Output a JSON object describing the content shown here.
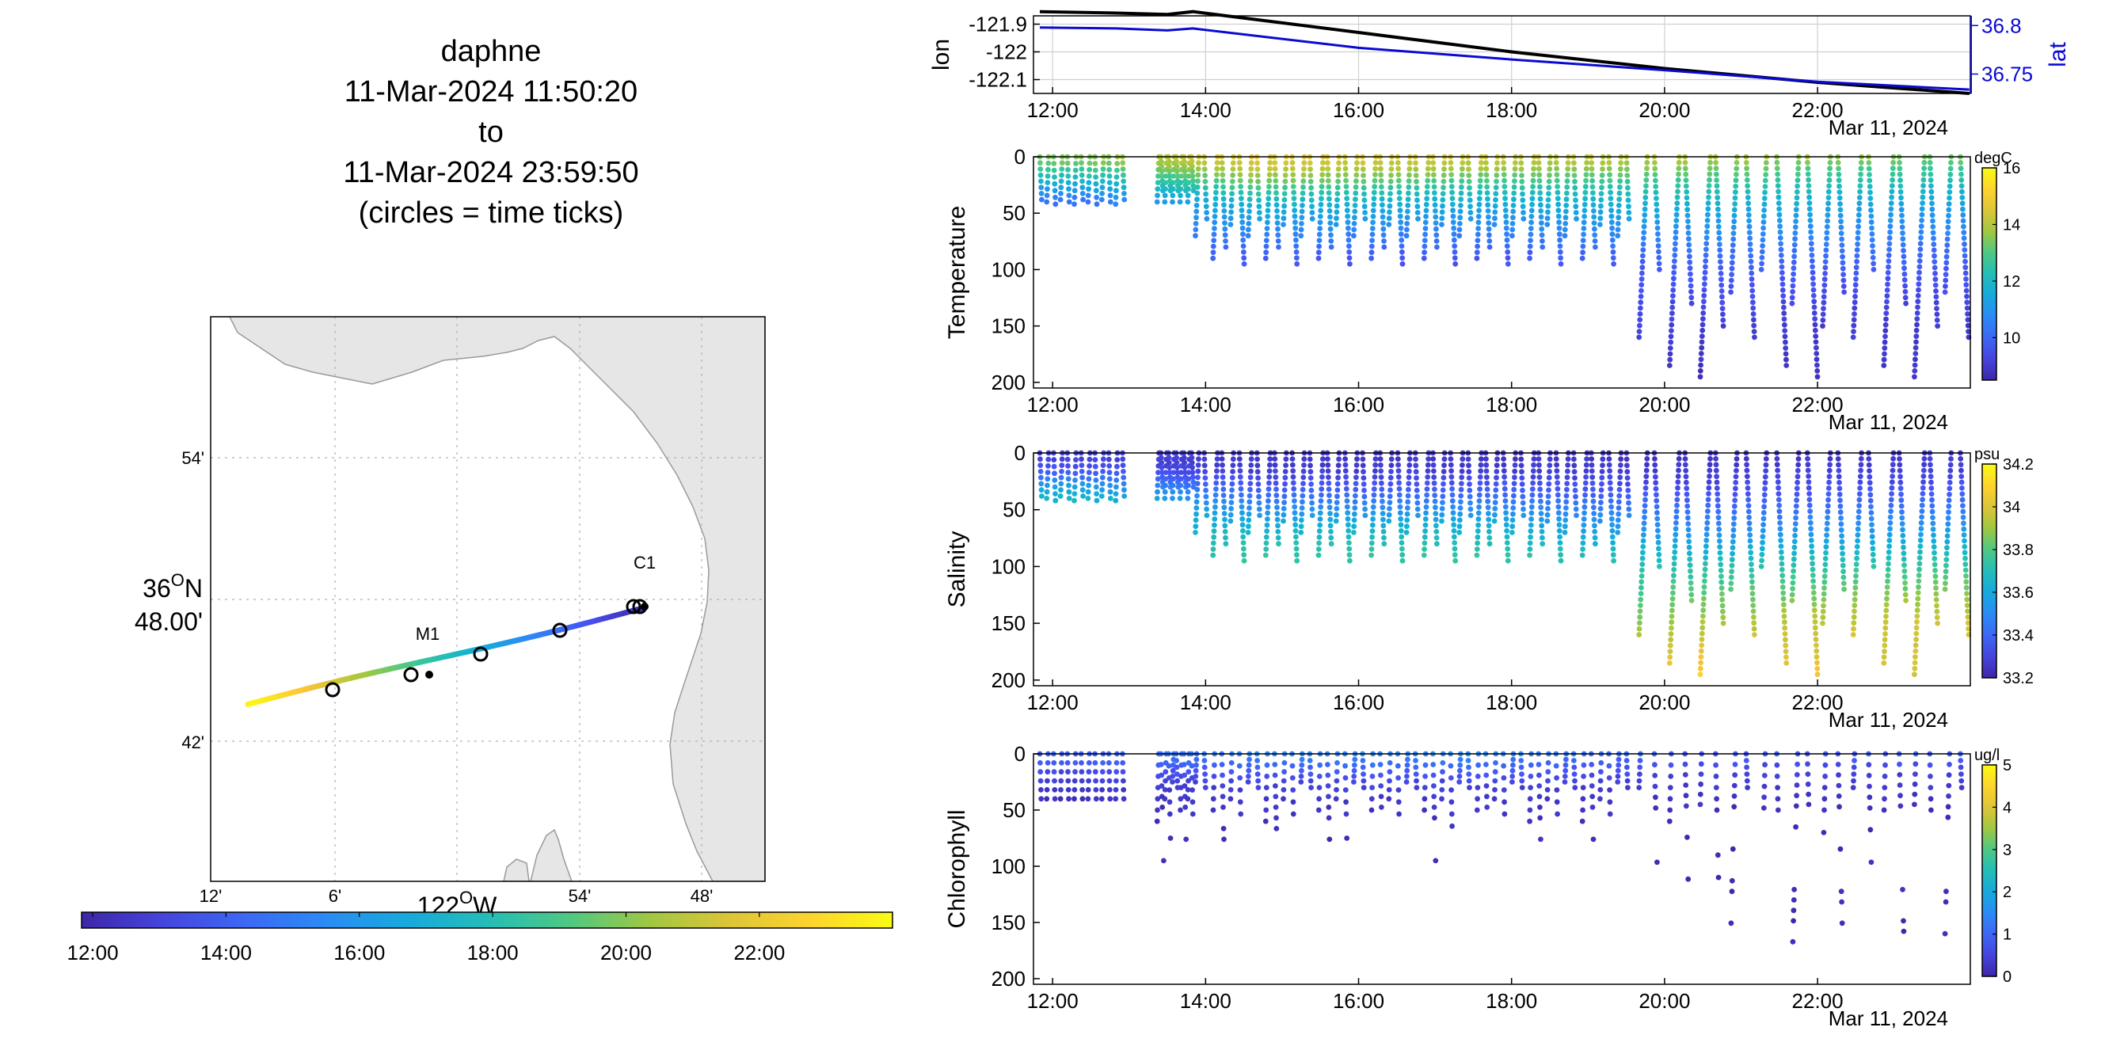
{
  "title": {
    "vehicle": "daphne",
    "start": "11-Mar-2024 11:50:20",
    "to": "to",
    "end": "11-Mar-2024 23:59:50",
    "note": "(circles = time ticks)"
  },
  "map": {
    "lat_ticks": [
      "54'",
      "36°N 48.00'",
      "42'"
    ],
    "lon_ticks": [
      "12'",
      "6'",
      "54'",
      "48'"
    ],
    "lon_label": "122°W",
    "stations": [
      {
        "name": "M1",
        "lon": -122.02,
        "lat": 36.747
      },
      {
        "name": "C1",
        "lon": -121.85,
        "lat": 36.798
      }
    ],
    "track": {
      "lon_range": [
        -122.21,
        -121.848
      ],
      "lat_range": [
        36.734,
        36.798
      ]
    },
    "colorbar_ticks": [
      "12:00",
      "14:00",
      "16:00",
      "18:00",
      "20:00",
      "22:00"
    ],
    "colors": {
      "land": "#e6e6e6",
      "coast": "#9a9a9a"
    }
  },
  "time_axis": {
    "ticks": [
      "12:00",
      "14:00",
      "16:00",
      "18:00",
      "20:00",
      "22:00"
    ],
    "date_label": "Mar 11, 2024",
    "range": [
      "11:50",
      "23:59:50"
    ]
  },
  "chart_data": [
    {
      "type": "line",
      "title": "",
      "xlabel": "",
      "ylabel": "lon",
      "y2label": "lat",
      "ylim": [
        -122.15,
        -121.87
      ],
      "y2lim": [
        36.73,
        36.81
      ],
      "yticks": [
        "-121.9",
        "-122",
        "-122.1"
      ],
      "y2ticks": [
        "36.8",
        "36.75"
      ],
      "series": [
        {
          "name": "lon",
          "axis": "left",
          "color": "#000000",
          "x": [
            "11:50",
            "12:50",
            "13:30",
            "13:50",
            "16:00",
            "18:00",
            "20:00",
            "22:00",
            "23:59"
          ],
          "y": [
            -121.855,
            -121.86,
            -121.865,
            -121.855,
            -121.93,
            -122.0,
            -122.06,
            -122.11,
            -122.15
          ]
        },
        {
          "name": "lat",
          "axis": "right",
          "color": "#0a0ad2",
          "x": [
            "11:50",
            "12:50",
            "13:30",
            "13:50",
            "16:00",
            "18:00",
            "20:00",
            "22:00",
            "23:59"
          ],
          "y": [
            36.798,
            36.797,
            36.795,
            36.797,
            36.777,
            36.765,
            36.754,
            36.742,
            36.734
          ]
        }
      ]
    },
    {
      "type": "scatter",
      "ylabel": "Temperature",
      "ylim": [
        0,
        205
      ],
      "yticks": [
        "0",
        "50",
        "100",
        "150",
        "200"
      ],
      "colorbar": {
        "unit": "degC",
        "range": [
          8.5,
          16
        ],
        "ticks": [
          "16",
          "14",
          "12",
          "10"
        ]
      },
      "profile_series": [
        {
          "x": "12:20",
          "depth": [
            0,
            5,
            10,
            15,
            20,
            25,
            30,
            35,
            40
          ],
          "value": [
            13.4,
            13.3,
            12.8,
            12.4,
            12.0,
            11.5,
            11.1,
            10.6,
            10.2
          ]
        },
        {
          "x": "14:40",
          "depth": [
            0,
            10,
            20,
            30,
            40,
            50,
            60,
            70,
            80,
            95
          ],
          "value": [
            14.6,
            14.2,
            13.5,
            12.7,
            12.0,
            11.5,
            11.0,
            10.6,
            10.1,
            9.6
          ]
        },
        {
          "x": "17:40",
          "depth": [
            0,
            10,
            20,
            30,
            40,
            50,
            60,
            70,
            80,
            90
          ],
          "value": [
            14.2,
            13.8,
            13.0,
            12.2,
            11.7,
            11.2,
            10.8,
            10.4,
            10.0,
            9.6
          ]
        },
        {
          "x": "20:20",
          "depth": [
            0,
            10,
            25,
            40,
            55,
            70,
            85,
            100,
            130,
            160,
            195
          ],
          "value": [
            14.0,
            13.4,
            12.6,
            11.9,
            11.3,
            10.7,
            10.2,
            9.8,
            9.4,
            9.0,
            8.8
          ]
        },
        {
          "x": "23:30",
          "depth": [
            0,
            10,
            25,
            40,
            55,
            70,
            85,
            100,
            125,
            150
          ],
          "value": [
            13.4,
            12.8,
            12.1,
            11.4,
            10.9,
            10.5,
            10.1,
            9.7,
            9.3,
            9.0
          ]
        }
      ]
    },
    {
      "type": "scatter",
      "ylabel": "Salinity",
      "ylim": [
        0,
        205
      ],
      "yticks": [
        "0",
        "50",
        "100",
        "150",
        "200"
      ],
      "colorbar": {
        "unit": "psu",
        "range": [
          33.2,
          34.2
        ],
        "ticks": [
          "34.2",
          "34",
          "33.8",
          "33.6",
          "33.4",
          "33.2"
        ]
      },
      "profile_series": [
        {
          "x": "12:20",
          "depth": [
            0,
            5,
            10,
            15,
            20,
            25,
            30,
            35,
            40
          ],
          "value": [
            33.28,
            33.3,
            33.32,
            33.36,
            33.42,
            33.5,
            33.58,
            33.62,
            33.66
          ]
        },
        {
          "x": "14:40",
          "depth": [
            0,
            10,
            20,
            30,
            40,
            50,
            60,
            70,
            80,
            95
          ],
          "value": [
            33.25,
            33.27,
            33.3,
            33.36,
            33.44,
            33.52,
            33.6,
            33.66,
            33.72,
            33.76
          ]
        },
        {
          "x": "17:40",
          "depth": [
            0,
            10,
            20,
            30,
            40,
            50,
            60,
            70,
            80,
            90
          ],
          "value": [
            33.25,
            33.27,
            33.3,
            33.36,
            33.44,
            33.52,
            33.6,
            33.66,
            33.7,
            33.74
          ]
        },
        {
          "x": "20:20",
          "depth": [
            0,
            10,
            25,
            40,
            55,
            70,
            85,
            100,
            130,
            160,
            195
          ],
          "value": [
            33.24,
            33.26,
            33.3,
            33.36,
            33.44,
            33.52,
            33.62,
            33.72,
            33.84,
            33.96,
            34.08
          ]
        },
        {
          "x": "23:30",
          "depth": [
            0,
            10,
            25,
            40,
            55,
            70,
            85,
            100,
            125,
            150
          ],
          "value": [
            33.26,
            33.28,
            33.32,
            33.4,
            33.48,
            33.56,
            33.66,
            33.76,
            33.88,
            33.98
          ]
        }
      ]
    },
    {
      "type": "scatter",
      "ylabel": "Chlorophyll",
      "ylim": [
        0,
        205
      ],
      "yticks": [
        "0",
        "50",
        "100",
        "150",
        "200"
      ],
      "colorbar": {
        "unit": "ug/l",
        "range": [
          0,
          5
        ],
        "ticks": [
          "5",
          "4",
          "3",
          "2",
          "1",
          "0"
        ]
      },
      "profile_series": [
        {
          "x": "12:20",
          "depth": [
            0,
            5,
            10,
            15,
            20,
            25,
            30,
            35,
            40
          ],
          "value": [
            0.9,
            0.9,
            0.8,
            0.6,
            0.5,
            0.4,
            0.3,
            0.2,
            0.2
          ]
        },
        {
          "x": "14:40",
          "depth": [
            0,
            5,
            10,
            15,
            25,
            40,
            60,
            80,
            95
          ],
          "value": [
            1.4,
            1.2,
            1.0,
            0.8,
            0.5,
            0.3,
            0.2,
            0.1,
            0.1
          ]
        },
        {
          "x": "17:40",
          "depth": [
            0,
            5,
            10,
            15,
            25,
            40,
            60,
            80,
            95
          ],
          "value": [
            1.5,
            1.3,
            1.1,
            0.9,
            0.5,
            0.3,
            0.2,
            0.1,
            0.1
          ]
        },
        {
          "x": "20:20",
          "depth": [
            0,
            5,
            10,
            20,
            30,
            45,
            105,
            160
          ],
          "value": [
            0.8,
            0.7,
            0.6,
            0.4,
            0.3,
            0.2,
            0.1,
            0.1
          ]
        },
        {
          "x": "23:30",
          "depth": [
            0,
            5,
            10,
            20,
            30,
            45,
            75,
            135
          ],
          "value": [
            0.9,
            0.8,
            0.6,
            0.4,
            0.3,
            0.2,
            0.1,
            0.1
          ]
        }
      ]
    }
  ]
}
